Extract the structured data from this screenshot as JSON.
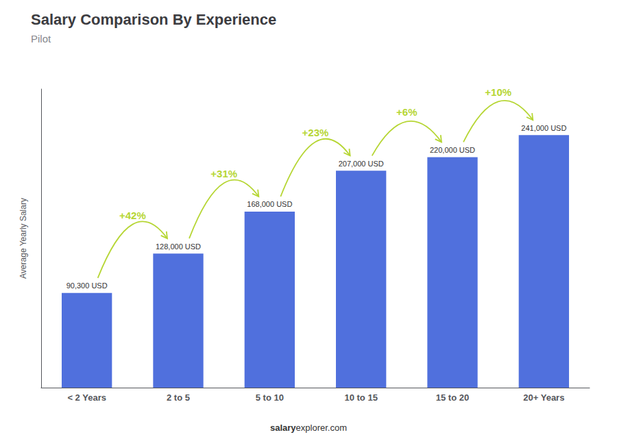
{
  "chart_data": {
    "type": "bar",
    "title": "Salary Comparison By Experience",
    "subtitle": "Pilot",
    "categories": [
      "< 2 Years",
      "2 to 5",
      "5 to 10",
      "10 to 15",
      "15 to 20",
      "20+ Years"
    ],
    "values": [
      90300,
      128000,
      168000,
      207000,
      220000,
      241000
    ],
    "value_labels": [
      "90,300 USD",
      "128,000 USD",
      "168,000 USD",
      "207,000 USD",
      "220,000 USD",
      "241,000 USD"
    ],
    "data_labels": true,
    "ylabel": "Average Yearly Salary",
    "ylim": [
      0,
      285000
    ],
    "tick_labels": "x",
    "grid": false,
    "annotations": [
      {
        "text": "+42%",
        "from": "< 2 Years",
        "to": "2 to 5"
      },
      {
        "text": "+31%",
        "from": "2 to 5",
        "to": "5 to 10"
      },
      {
        "text": "+23%",
        "from": "5 to 10",
        "to": "10 to 15"
      },
      {
        "text": "+6%",
        "from": "10 to 15",
        "to": "15 to 20"
      },
      {
        "text": "+10%",
        "from": "15 to 20",
        "to": "20+ Years"
      }
    ],
    "footer": [
      "salary",
      "explorer.com"
    ]
  }
}
